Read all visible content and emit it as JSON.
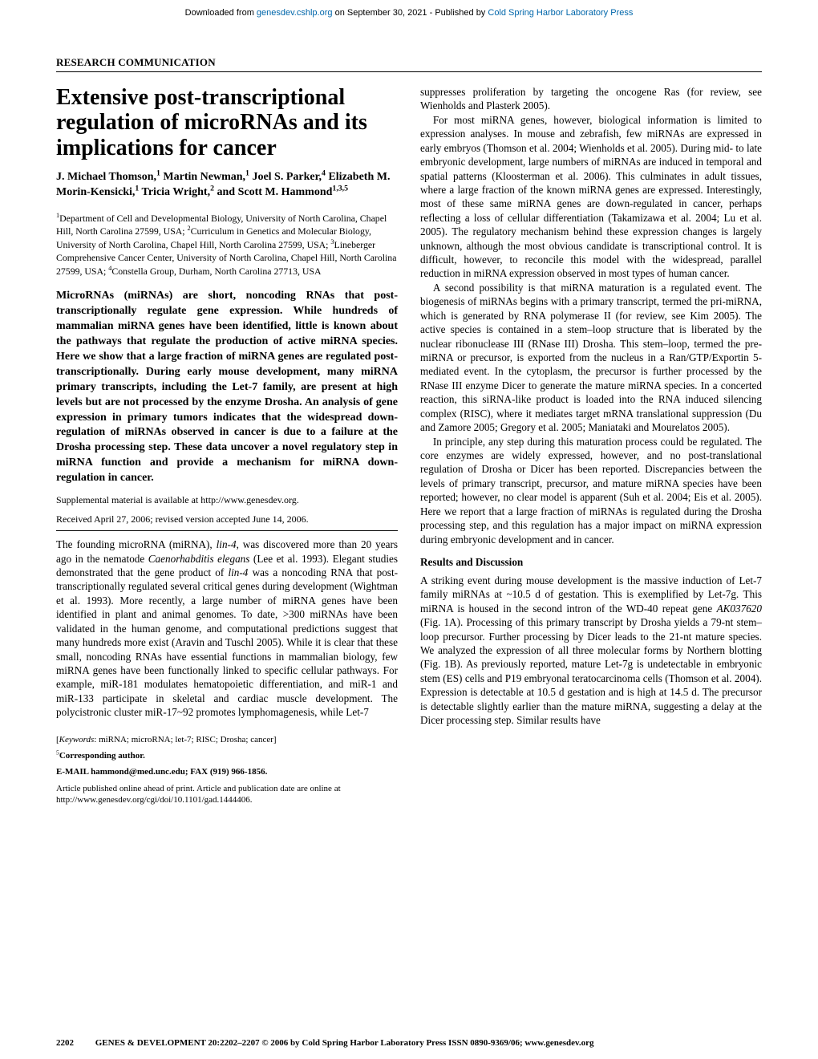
{
  "download_bar": {
    "prefix": "Downloaded from ",
    "link1": "genesdev.cshlp.org",
    "mid": " on September 30, 2021 - Published by ",
    "link2": "Cold Spring Harbor Laboratory Press"
  },
  "section_label": "RESEARCH COMMUNICATION",
  "title": "Extensive post-transcriptional regulation of microRNAs and its implications for cancer",
  "authors_html": "J. Michael Thomson,<sup>1</sup> Martin Newman,<sup>1</sup> Joel S. Parker,<sup>4</sup> Elizabeth M. Morin-Kensicki,<sup>1</sup> Tricia Wright,<sup>2</sup> and Scott M. Hammond<sup>1,3,5</sup>",
  "affiliations_html": "<sup>1</sup>Department of Cell and Developmental Biology, University of North Carolina, Chapel Hill, North Carolina 27599, USA; <sup>2</sup>Curriculum in Genetics and Molecular Biology, University of North Carolina, Chapel Hill, North Carolina 27599, USA; <sup>3</sup>Lineberger Comprehensive Cancer Center, University of North Carolina, Chapel Hill, North Carolina 27599, USA; <sup>4</sup>Constella Group, Durham, North Carolina 27713, USA",
  "abstract": "MicroRNAs (miRNAs) are short, noncoding RNAs that post-transcriptionally regulate gene expression. While hundreds of mammalian miRNA genes have been identified, little is known about the pathways that regulate the production of active miRNA species. Here we show that a large fraction of miRNA genes are regulated post-transcriptionally. During early mouse development, many miRNA primary transcripts, including the Let-7 family, are present at high levels but are not processed by the enzyme Drosha. An analysis of gene expression in primary tumors indicates that the widespread down-regulation of miRNAs observed in cancer is due to a failure at the Drosha processing step. These data uncover a novel regulatory step in miRNA function and provide a mechanism for miRNA down-regulation in cancer.",
  "supp": "Supplemental material is available at http://www.genesdev.org.",
  "received": "Received April 27, 2006; revised version accepted June 14, 2006.",
  "left_body_html": "The founding microRNA (miRNA), <span class=\"italic\">lin-4</span>, was discovered more than 20 years ago in the nematode <span class=\"italic\">Caenorhabditis elegans</span> (Lee et al. 1993). Elegant studies demonstrated that the gene product of <span class=\"italic\">lin-4</span> was a noncoding RNA that post-transcriptionally regulated several critical genes during development (Wightman et al. 1993). More recently, a large number of miRNA genes have been identified in plant and animal genomes. To date, >300 miRNAs have been validated in the human genome, and computational predictions suggest that many hundreds more exist (Aravin and Tuschl 2005). While it is clear that these small, noncoding RNAs have essential functions in mammalian biology, few miRNA genes have been functionally linked to specific cellular pathways. For example, miR-181 modulates hematopoietic differentiation, and miR-1 and miR-133 participate in skeletal and cardiac muscle development. The polycistronic cluster miR-17~92 promotes lymphomagenesis, while Let-7",
  "footnote_keywords_html": "[<span class=\"italic\">Keywords</span>: miRNA; microRNA; let-7; RISC; Drosha; cancer]",
  "footnote_corr_html": "<sup>5</sup><b>Corresponding author.</b>",
  "footnote_email_html": "<b>E-MAIL hammond@med.unc.edu; FAX (919) 966-1856.</b>",
  "footnote_pub": "Article published online ahead of print. Article and publication date are online at http://www.genesdev.org/cgi/doi/10.1101/gad.1444406.",
  "right_col": {
    "p1": "suppresses proliferation by targeting the oncogene Ras (for review, see Wienholds and Plasterk 2005).",
    "p2": "For most miRNA genes, however, biological information is limited to expression analyses. In mouse and zebrafish, few miRNAs are expressed in early embryos (Thomson et al. 2004; Wienholds et al. 2005). During mid- to late embryonic development, large numbers of miRNAs are induced in temporal and spatial patterns (Kloosterman et al. 2006). This culminates in adult tissues, where a large fraction of the known miRNA genes are expressed. Interestingly, most of these same miRNA genes are down-regulated in cancer, perhaps reflecting a loss of cellular differentiation (Takamizawa et al. 2004; Lu et al. 2005). The regulatory mechanism behind these expression changes is largely unknown, although the most obvious candidate is transcriptional control. It is difficult, however, to reconcile this model with the widespread, parallel reduction in miRNA expression observed in most types of human cancer.",
    "p3": "A second possibility is that miRNA maturation is a regulated event. The biogenesis of miRNAs begins with a primary transcript, termed the pri-miRNA, which is generated by RNA polymerase II (for review, see Kim 2005). The active species is contained in a stem–loop structure that is liberated by the nuclear ribonuclease III (RNase III) Drosha. This stem–loop, termed the pre-miRNA or precursor, is exported from the nucleus in a Ran/GTP/Exportin 5-mediated event. In the cytoplasm, the precursor is further processed by the RNase III enzyme Dicer to generate the mature miRNA species. In a concerted reaction, this siRNA-like product is loaded into the RNA induced silencing complex (RISC), where it mediates target mRNA translational suppression (Du and Zamore 2005; Gregory et al. 2005; Maniataki and Mourelatos 2005).",
    "p4": "In principle, any step during this maturation process could be regulated. The core enzymes are widely expressed, however, and no post-translational regulation of Drosha or Dicer has been reported. Discrepancies between the levels of primary transcript, precursor, and mature miRNA species have been reported; however, no clear model is apparent (Suh et al. 2004; Eis et al. 2005). Here we report that a large fraction of miRNAs is regulated during the Drosha processing step, and this regulation has a major impact on miRNA expression during embryonic development and in cancer.",
    "results_heading": "Results and Discussion",
    "p5_html": "A striking event during mouse development is the massive induction of Let-7 family miRNAs at ~10.5 d of gestation. This is exemplified by Let-7g. This miRNA is housed in the second intron of the WD-40 repeat gene <span class=\"italic\">AK037620</span> (Fig. 1A). Processing of this primary transcript by Drosha yields a 79-nt stem–loop precursor. Further processing by Dicer leads to the 21-nt mature species. We analyzed the expression of all three molecular forms by Northern blotting (Fig. 1B). As previously reported, mature Let-7g is undetectable in embryonic stem (ES) cells and P19 embryonal teratocarcinoma cells (Thomson et al. 2004). Expression is detectable at 10.5 d gestation and is high at 14.5 d. The precursor is detectable slightly earlier than the mature miRNA, suggesting a delay at the Dicer processing step. Similar results have"
  },
  "footer": {
    "page": "2202",
    "line": "GENES & DEVELOPMENT 20:2202–2207 © 2006 by Cold Spring Harbor Laboratory Press ISSN 0890-9369/06; www.genesdev.org"
  }
}
